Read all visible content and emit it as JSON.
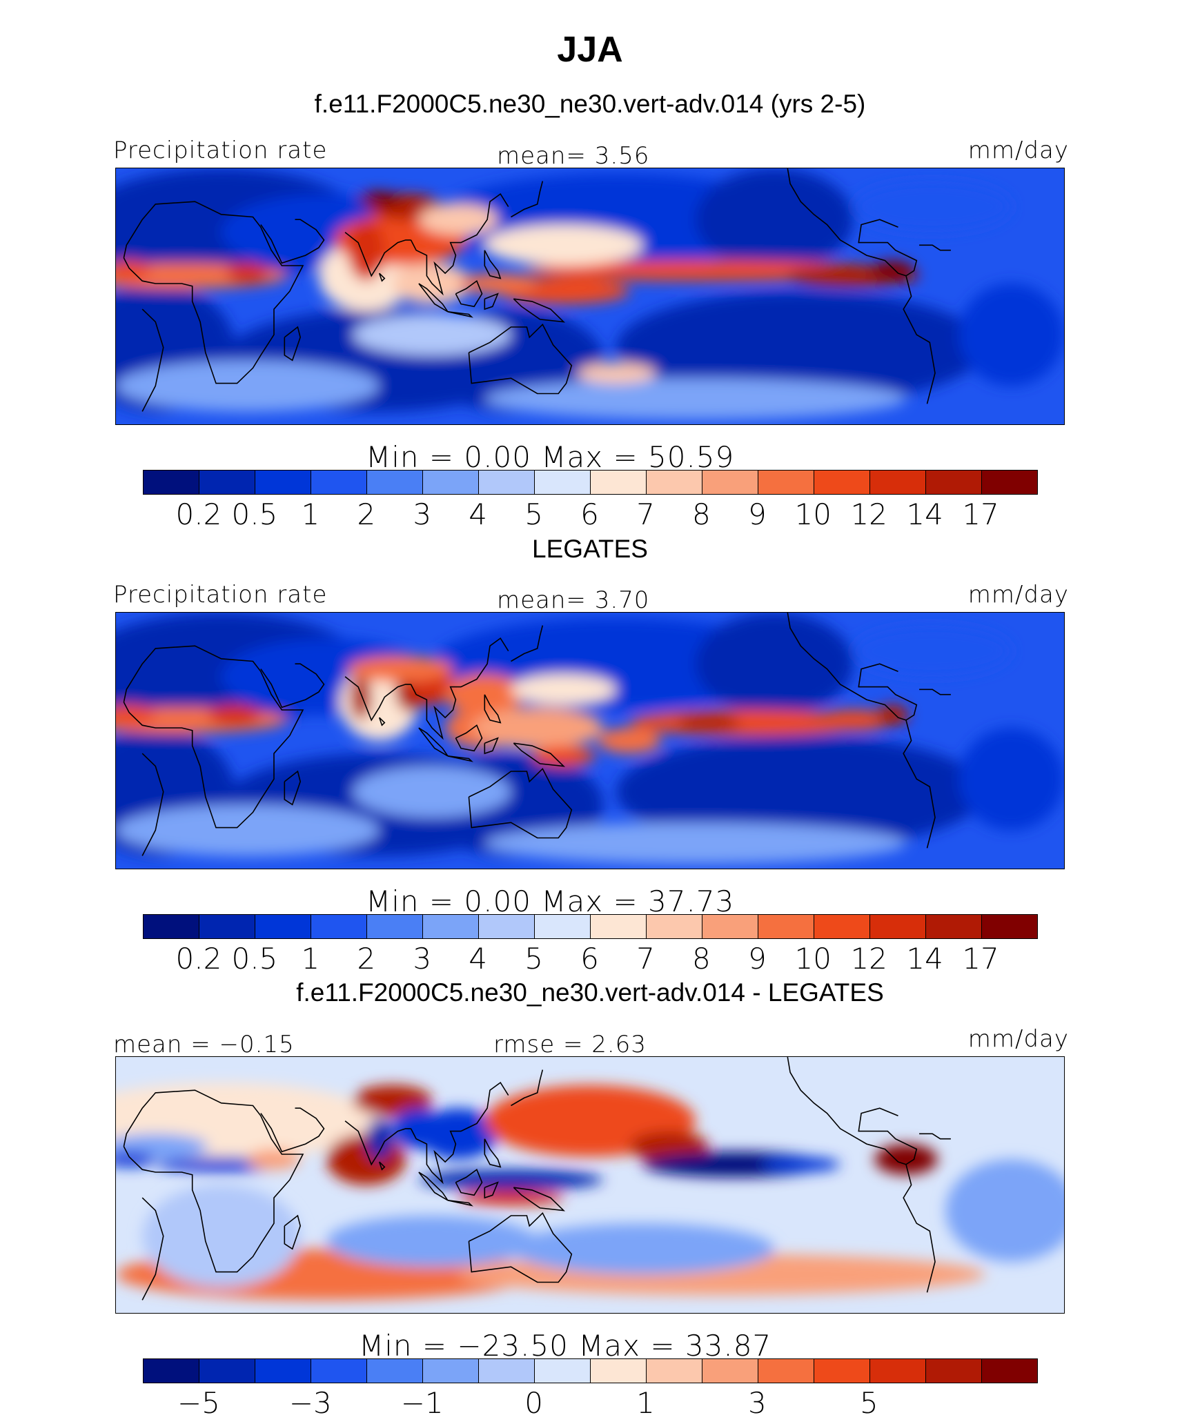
{
  "title": "JJA",
  "colors": [
    "#00107d",
    "#0025b0",
    "#0036d8",
    "#1f55f0",
    "#4a7ff5",
    "#7ba4f8",
    "#b1c8fa",
    "#d9e6fc",
    "#fde6d4",
    "#fcc8ad",
    "#f9a07a",
    "#f5703f",
    "#ee4a1a",
    "#d72e0a",
    "#b01a05",
    "#800000"
  ],
  "panels": [
    {
      "title": "f.e11.F2000C5.ne30_ne30.vert-adv.014 (yrs 2-5)",
      "left_label": "Precipitation rate",
      "center_label": "mean=   3.56",
      "right_label": "mm/day",
      "minmax": "Min  =    0.00  Max  =   50.59",
      "ticks": [
        "0.2",
        "0.5",
        "1",
        "2",
        "3",
        "4",
        "5",
        "6",
        "7",
        "8",
        "9",
        "10",
        "12",
        "14",
        "17"
      ]
    },
    {
      "title": "LEGATES",
      "left_label": "Precipitation rate",
      "center_label": "mean=   3.70",
      "right_label": "mm/day",
      "minmax": "Min  =    0.00  Max  =   37.73",
      "ticks": [
        "0.2",
        "0.5",
        "1",
        "2",
        "3",
        "4",
        "5",
        "6",
        "7",
        "8",
        "9",
        "10",
        "12",
        "14",
        "17"
      ]
    },
    {
      "title": "f.e11.F2000C5.ne30_ne30.vert-adv.014 - LEGATES",
      "left_label": "mean  =   −0.15",
      "center_label": "rmse  =    2.63",
      "right_label": "mm/day",
      "minmax": "Min  =  −23.50  Max  =   33.87",
      "ticks": [
        "−5",
        "",
        "−3",
        "",
        "−1",
        "",
        "0",
        "",
        "1",
        "",
        "3",
        "",
        "5",
        "",
        ""
      ]
    }
  ],
  "chart_data": [
    {
      "type": "heatmap",
      "title": "f.e11.F2000C5.ne30_ne30.vert-adv.014 (yrs 2-5)",
      "variable": "Precipitation rate",
      "units": "mm/day",
      "mean": 3.56,
      "min": 0.0,
      "max": 50.59,
      "contour_levels": [
        0.2,
        0.5,
        1,
        2,
        3,
        4,
        5,
        6,
        7,
        8,
        9,
        10,
        12,
        14,
        17
      ],
      "season": "JJA"
    },
    {
      "type": "heatmap",
      "title": "LEGATES",
      "variable": "Precipitation rate",
      "units": "mm/day",
      "mean": 3.7,
      "min": 0.0,
      "max": 37.73,
      "contour_levels": [
        0.2,
        0.5,
        1,
        2,
        3,
        4,
        5,
        6,
        7,
        8,
        9,
        10,
        12,
        14,
        17
      ],
      "season": "JJA"
    },
    {
      "type": "heatmap",
      "title": "f.e11.F2000C5.ne30_ne30.vert-adv.014 - LEGATES",
      "units": "mm/day",
      "mean": -0.15,
      "rmse": 2.63,
      "min": -23.5,
      "max": 33.87,
      "tick_labels": [
        "−5",
        "−3",
        "−1",
        "0",
        "1",
        "3",
        "5"
      ],
      "season": "JJA"
    }
  ]
}
